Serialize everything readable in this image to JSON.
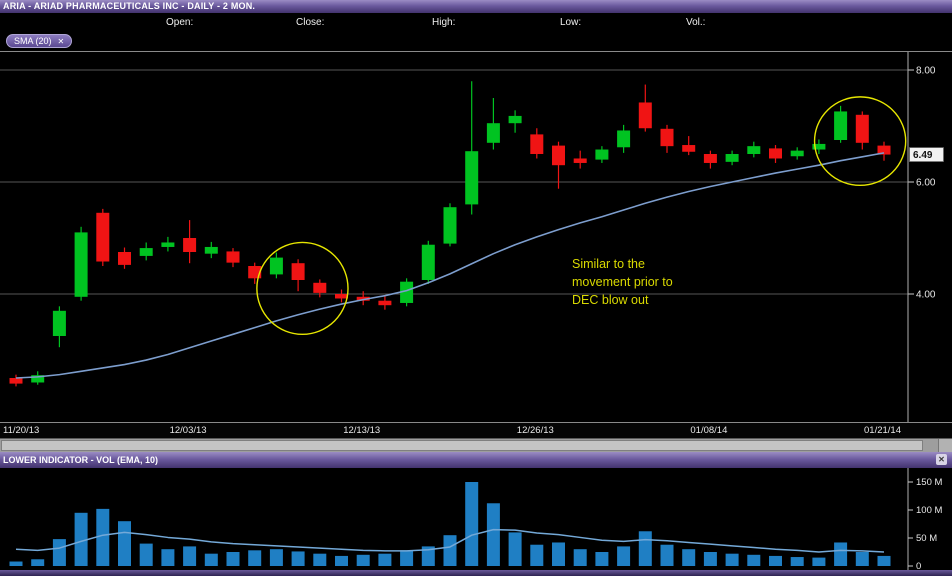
{
  "window": {
    "title": "ARIA - ARIAD PHARMACEUTICALS INC - DAILY - 2 MON."
  },
  "quote_bar": {
    "open_label": "Open:",
    "close_label": "Close:",
    "high_label": "High:",
    "low_label": "Low:",
    "vol_label": "Vol.:"
  },
  "overlays": {
    "sma_chip_label": "SMA (20)",
    "close_icon": "✕"
  },
  "lower_panel": {
    "header": "LOWER INDICATOR - VOL (EMA, 10)",
    "close_icon": "✕"
  },
  "price_axis": {
    "labels": [
      "8.00",
      "6.00",
      "4.00"
    ],
    "values": [
      8.0,
      6.0,
      4.0
    ],
    "top_value": 8.0,
    "last_price": 6.49,
    "last_price_label": "6.49"
  },
  "volume_axis": {
    "labels": [
      "150 M",
      "100 M",
      "50 M",
      "0"
    ],
    "values": [
      150,
      100,
      50,
      0
    ]
  },
  "annotation": {
    "lines": [
      "Similar to the",
      "movement prior to",
      "DEC blow out"
    ],
    "color": "#d9d900"
  },
  "colors": {
    "up": "#00c321",
    "down": "#f01414",
    "sma_line": "#7d9ece",
    "grid": "#565656",
    "axis": "#b0b0b0",
    "volume_bar": "#1f7fc4",
    "volume_ema": "#74a9d8",
    "annotation_yellow": "#e6e600"
  },
  "chart_data": {
    "type": "candlestick",
    "symbol": "ARIA",
    "timeframe": "DAILY - 2 MON",
    "legend": [
      "SMA (20)",
      "VOL (EMA, 10)"
    ],
    "price_range": [
      1.7,
      8.3
    ],
    "volume_range_m": [
      0,
      160
    ],
    "grid": "horizontal-only",
    "x_tick_labels": [
      "11/20/13",
      "12/03/13",
      "12/13/13",
      "12/26/13",
      "01/08/14",
      "01/21/14"
    ],
    "x_tick_indices": [
      0,
      8,
      16,
      24,
      32,
      40
    ],
    "candles": [
      {
        "d": "11/20/13",
        "o": 2.5,
        "h": 2.56,
        "l": 2.35,
        "c": 2.4
      },
      {
        "d": "11/21/13",
        "o": 2.42,
        "h": 2.62,
        "l": 2.38,
        "c": 2.55
      },
      {
        "d": "11/22/13",
        "o": 3.25,
        "h": 3.78,
        "l": 3.05,
        "c": 3.7
      },
      {
        "d": "11/25/13",
        "o": 3.95,
        "h": 5.2,
        "l": 3.88,
        "c": 5.1
      },
      {
        "d": "11/26/13",
        "o": 5.45,
        "h": 5.52,
        "l": 4.5,
        "c": 4.58
      },
      {
        "d": "11/27/13",
        "o": 4.75,
        "h": 4.83,
        "l": 4.45,
        "c": 4.52
      },
      {
        "d": "11/29/13",
        "o": 4.68,
        "h": 4.92,
        "l": 4.6,
        "c": 4.82
      },
      {
        "d": "12/02/13",
        "o": 4.84,
        "h": 5.02,
        "l": 4.76,
        "c": 4.92
      },
      {
        "d": "12/03/13",
        "o": 5.0,
        "h": 5.32,
        "l": 4.55,
        "c": 4.75
      },
      {
        "d": "12/04/13",
        "o": 4.72,
        "h": 4.93,
        "l": 4.64,
        "c": 4.84
      },
      {
        "d": "12/05/13",
        "o": 4.76,
        "h": 4.82,
        "l": 4.48,
        "c": 4.56
      },
      {
        "d": "12/06/13",
        "o": 4.5,
        "h": 4.56,
        "l": 4.18,
        "c": 4.28
      },
      {
        "d": "12/09/13",
        "o": 4.35,
        "h": 4.74,
        "l": 4.28,
        "c": 4.65
      },
      {
        "d": "12/10/13",
        "o": 4.55,
        "h": 4.62,
        "l": 4.05,
        "c": 4.25
      },
      {
        "d": "12/11/13",
        "o": 4.2,
        "h": 4.26,
        "l": 3.94,
        "c": 4.02
      },
      {
        "d": "12/12/13",
        "o": 4.0,
        "h": 4.08,
        "l": 3.85,
        "c": 3.92
      },
      {
        "d": "12/13/13",
        "o": 3.95,
        "h": 4.05,
        "l": 3.8,
        "c": 3.88
      },
      {
        "d": "12/16/13",
        "o": 3.88,
        "h": 3.96,
        "l": 3.72,
        "c": 3.8
      },
      {
        "d": "12/17/13",
        "o": 3.84,
        "h": 4.28,
        "l": 3.78,
        "c": 4.22
      },
      {
        "d": "12/18/13",
        "o": 4.25,
        "h": 4.95,
        "l": 4.18,
        "c": 4.88
      },
      {
        "d": "12/19/13",
        "o": 4.9,
        "h": 5.62,
        "l": 4.85,
        "c": 5.55
      },
      {
        "d": "12/20/13",
        "o": 5.6,
        "h": 7.8,
        "l": 5.42,
        "c": 6.55
      },
      {
        "d": "12/23/13",
        "o": 6.7,
        "h": 7.5,
        "l": 6.58,
        "c": 7.05
      },
      {
        "d": "12/24/13",
        "o": 7.05,
        "h": 7.28,
        "l": 6.88,
        "c": 7.18
      },
      {
        "d": "12/26/13",
        "o": 6.85,
        "h": 6.96,
        "l": 6.42,
        "c": 6.5
      },
      {
        "d": "12/27/13",
        "o": 6.65,
        "h": 6.72,
        "l": 5.88,
        "c": 6.3
      },
      {
        "d": "12/30/13",
        "o": 6.42,
        "h": 6.56,
        "l": 6.24,
        "c": 6.34
      },
      {
        "d": "12/31/13",
        "o": 6.4,
        "h": 6.64,
        "l": 6.34,
        "c": 6.58
      },
      {
        "d": "01/02/14",
        "o": 6.62,
        "h": 7.02,
        "l": 6.52,
        "c": 6.92
      },
      {
        "d": "01/03/14",
        "o": 7.42,
        "h": 7.74,
        "l": 6.9,
        "c": 6.96
      },
      {
        "d": "01/06/14",
        "o": 6.95,
        "h": 7.02,
        "l": 6.52,
        "c": 6.64
      },
      {
        "d": "01/07/14",
        "o": 6.66,
        "h": 6.82,
        "l": 6.48,
        "c": 6.54
      },
      {
        "d": "01/08/14",
        "o": 6.5,
        "h": 6.56,
        "l": 6.24,
        "c": 6.34
      },
      {
        "d": "01/09/14",
        "o": 6.36,
        "h": 6.56,
        "l": 6.3,
        "c": 6.5
      },
      {
        "d": "01/10/14",
        "o": 6.5,
        "h": 6.72,
        "l": 6.44,
        "c": 6.64
      },
      {
        "d": "01/13/14",
        "o": 6.6,
        "h": 6.66,
        "l": 6.34,
        "c": 6.42
      },
      {
        "d": "01/14/14",
        "o": 6.46,
        "h": 6.62,
        "l": 6.4,
        "c": 6.56
      },
      {
        "d": "01/15/14",
        "o": 6.58,
        "h": 6.76,
        "l": 6.5,
        "c": 6.68
      },
      {
        "d": "01/16/14",
        "o": 6.75,
        "h": 7.36,
        "l": 6.7,
        "c": 7.26
      },
      {
        "d": "01/17/14",
        "o": 7.2,
        "h": 7.26,
        "l": 6.58,
        "c": 6.7
      },
      {
        "d": "01/21/14",
        "o": 6.65,
        "h": 6.72,
        "l": 6.38,
        "c": 6.49
      }
    ],
    "sma20": [
      2.5,
      2.52,
      2.56,
      2.62,
      2.68,
      2.74,
      2.82,
      2.92,
      3.04,
      3.16,
      3.28,
      3.4,
      3.52,
      3.63,
      3.73,
      3.82,
      3.9,
      3.97,
      4.06,
      4.2,
      4.36,
      4.54,
      4.72,
      4.88,
      5.02,
      5.15,
      5.27,
      5.38,
      5.5,
      5.62,
      5.73,
      5.83,
      5.92,
      6.0,
      6.08,
      6.16,
      6.23,
      6.3,
      6.38,
      6.45,
      6.52
    ],
    "volume_m": [
      8,
      12,
      48,
      95,
      102,
      80,
      40,
      30,
      35,
      22,
      25,
      28,
      30,
      26,
      22,
      18,
      20,
      22,
      28,
      35,
      55,
      150,
      112,
      60,
      38,
      42,
      30,
      25,
      35,
      62,
      38,
      30,
      25,
      22,
      20,
      18,
      16,
      15,
      42,
      25,
      18
    ],
    "volume_ema10": [
      30,
      28,
      32,
      44,
      55,
      60,
      56,
      51,
      48,
      43,
      40,
      38,
      36,
      34,
      32,
      30,
      28,
      27,
      27,
      29,
      34,
      55,
      65,
      64,
      59,
      56,
      51,
      46,
      44,
      47,
      45,
      42,
      39,
      36,
      33,
      30,
      28,
      25,
      28,
      27,
      25
    ],
    "annotations": {
      "circles": [
        {
          "center_index": 13.2,
          "center_price": 4.1,
          "radius_index": 2.1,
          "radius_price": 0.82
        },
        {
          "center_index": 38.9,
          "center_price": 6.73,
          "radius_index": 2.1,
          "radius_price": 0.79
        }
      ]
    }
  }
}
